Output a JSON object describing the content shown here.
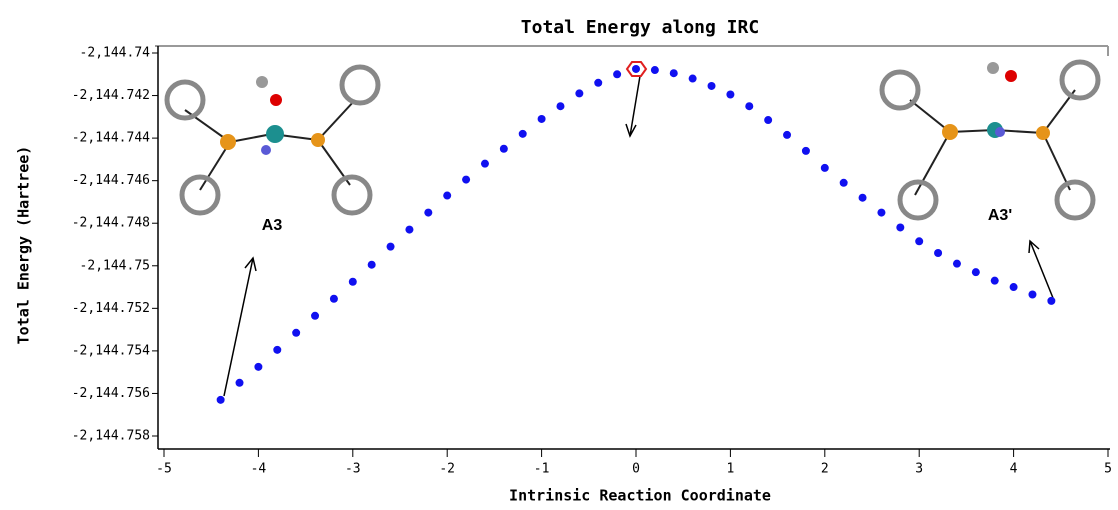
{
  "chart_data": {
    "type": "scatter",
    "title": "Total Energy along IRC",
    "x_label": "Intrinsic Reaction Coordinate",
    "y_label": "Total Energy (Hartree)",
    "annotations": [
      "A3",
      "A3'"
    ],
    "color": "#1010f0",
    "x": [
      -4.4,
      -4.2,
      -4.0,
      -3.8,
      -3.6,
      -3.4,
      -3.2,
      -3.0,
      -2.8,
      -2.6,
      -2.4,
      -2.2,
      -2.0,
      -1.8,
      -1.6,
      -1.4,
      -1.2,
      -1.0,
      -0.8,
      -0.6,
      -0.4,
      -0.2,
      0,
      0.2,
      0.4,
      0.6,
      0.8,
      1.0,
      1.2,
      1.4,
      1.6,
      1.8,
      2.0,
      2.2,
      2.4,
      2.6,
      2.8,
      3.0,
      3.2,
      3.4,
      3.6,
      3.8,
      4.0,
      4.2,
      4.4
    ],
    "values": [
      -2144.7563,
      -2144.7555,
      -2144.75475,
      -2144.75395,
      -2144.75315,
      -2144.75235,
      -2144.75155,
      -2144.75075,
      -2144.74995,
      -2144.7491,
      -2144.7483,
      -2144.7475,
      -2144.7467,
      -2144.74595,
      -2144.7452,
      -2144.7445,
      -2144.7438,
      -2144.7431,
      -2144.7425,
      -2144.7419,
      -2144.7414,
      -2144.741,
      -2144.74075,
      -2144.7408,
      -2144.74095,
      -2144.7412,
      -2144.74155,
      -2144.74195,
      -2144.7425,
      -2144.74315,
      -2144.74385,
      -2144.7446,
      -2144.7454,
      -2144.7461,
      -2144.7468,
      -2144.7475,
      -2144.7482,
      -2144.74885,
      -2144.7494,
      -2144.7499,
      -2144.7503,
      -2144.7507,
      -2144.751,
      -2144.75135,
      -2144.75165
    ],
    "xlim": [
      -5,
      5
    ],
    "xticks": [
      -5,
      -4,
      -3,
      -2,
      -1,
      0,
      1,
      2,
      3,
      4,
      5
    ],
    "ylim": [
      -2144.758,
      -2144.74
    ],
    "yticks": [
      {
        "value": -2144.74,
        "label": "-2,144.74"
      },
      {
        "value": -2144.742,
        "label": "-2,144.742"
      },
      {
        "value": -2144.744,
        "label": "-2,144.744"
      },
      {
        "value": -2144.746,
        "label": "-2,144.746"
      },
      {
        "value": -2144.748,
        "label": "-2,144.748"
      },
      {
        "value": -2144.75,
        "label": "-2,144.75"
      },
      {
        "value": -2144.752,
        "label": "-2,144.752"
      },
      {
        "value": -2144.754,
        "label": "-2,144.754"
      },
      {
        "value": -2144.756,
        "label": "-2,144.756"
      },
      {
        "value": -2144.758,
        "label": "-2,144.758"
      }
    ]
  }
}
